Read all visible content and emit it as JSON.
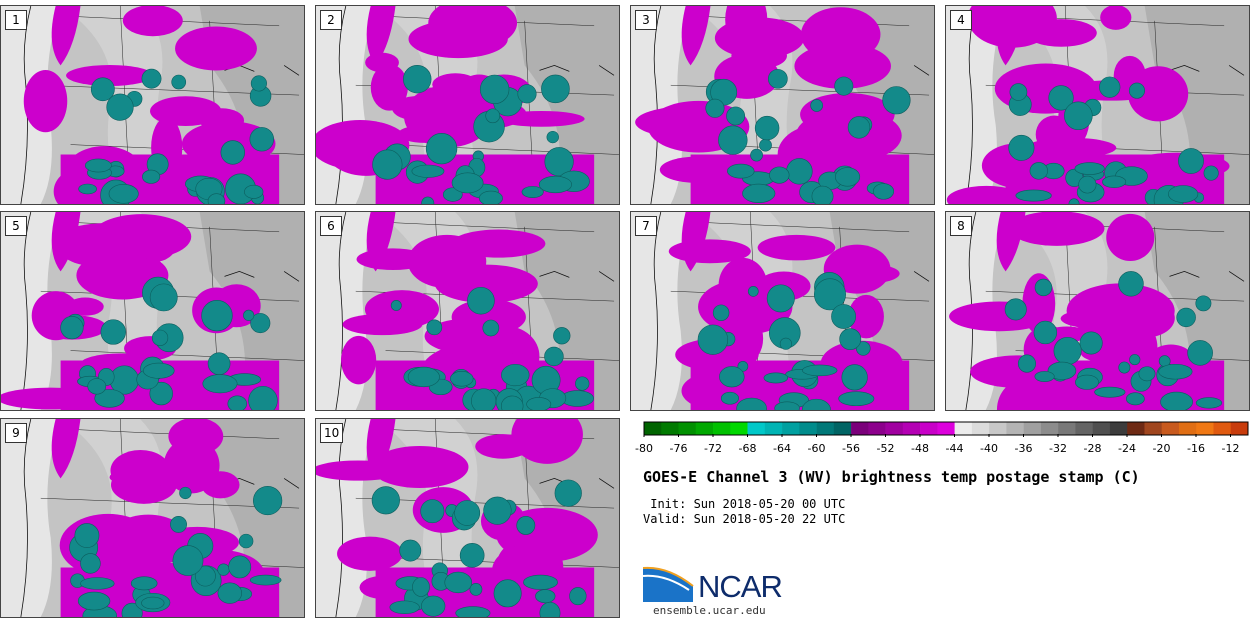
{
  "panels": [
    {
      "label": "1"
    },
    {
      "label": "2"
    },
    {
      "label": "3"
    },
    {
      "label": "4"
    },
    {
      "label": "5"
    },
    {
      "label": "6"
    },
    {
      "label": "7"
    },
    {
      "label": "8"
    },
    {
      "label": "9"
    },
    {
      "label": "10"
    }
  ],
  "colorbar": {
    "segments": [
      "#006400",
      "#007a00",
      "#009000",
      "#00a800",
      "#00c000",
      "#00d800",
      "#00c8c8",
      "#00b4b4",
      "#00a0a0",
      "#008c8c",
      "#007878",
      "#006464",
      "#7a007a",
      "#8c008c",
      "#a000a0",
      "#b400b4",
      "#c800c8",
      "#dc00dc",
      "#ececec",
      "#dcdcdc",
      "#c8c8c8",
      "#b4b4b4",
      "#a0a0a0",
      "#8c8c8c",
      "#787878",
      "#646464",
      "#505050",
      "#3c3c3c",
      "#6e2a14",
      "#a0461e",
      "#c85a1e",
      "#e06e14",
      "#f07814",
      "#e05a10",
      "#c83c0c"
    ],
    "tick_labels": [
      "-80",
      "-76",
      "-72",
      "-68",
      "-64",
      "-60",
      "-56",
      "-52",
      "-48",
      "-44",
      "-40",
      "-36",
      "-32",
      "-28",
      "-24",
      "-20",
      "-16",
      "-12"
    ]
  },
  "title": "GOES-E Channel 3 (WV) brightness temp postage stamp (C)",
  "init_text": " Init: Sun 2018-05-20 00 UTC",
  "valid_text": "Valid: Sun 2018-05-20 22 UTC",
  "logo_text": "NCAR",
  "logo_url": "ensemble.ucar.edu",
  "colors": {
    "magenta": "#cc00cc",
    "teal": "#138a8a",
    "gray_light": "#e6e6e6",
    "gray_mid": "#c4c4c4",
    "gray_dark": "#a8a8a8"
  }
}
